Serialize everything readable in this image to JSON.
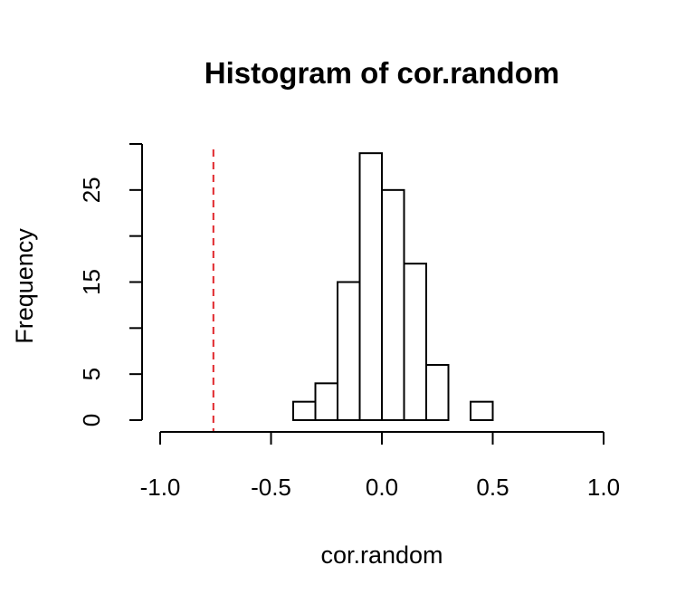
{
  "chart_data": {
    "type": "histogram",
    "title": "Histogram of cor.random",
    "x_label": "cor.random",
    "y_label": "Frequency",
    "bins": [
      -0.4,
      -0.3,
      -0.2,
      -0.1,
      0,
      0.1,
      0.2,
      0.3,
      0.4,
      0.5
    ],
    "values": [
      2,
      4,
      15,
      29,
      25,
      17,
      6,
      0,
      2
    ],
    "color": "#ffffff",
    "edge_color": "#000000",
    "xlim": [
      -1,
      1
    ],
    "xticks": [
      {
        "value": -1,
        "label": "-1.0"
      },
      {
        "value": -0.5,
        "label": "-0.5"
      },
      {
        "value": 0,
        "label": "0.0"
      },
      {
        "value": 0.5,
        "label": "0.5"
      },
      {
        "value": 1,
        "label": "1.0"
      }
    ],
    "ylim": [
      0,
      30
    ],
    "yticks": [
      0,
      5,
      15,
      25
    ],
    "y_minor_ticks": [
      10,
      20,
      30
    ],
    "reference_line": {
      "value": -0.76,
      "color": "#e0262b"
    }
  }
}
